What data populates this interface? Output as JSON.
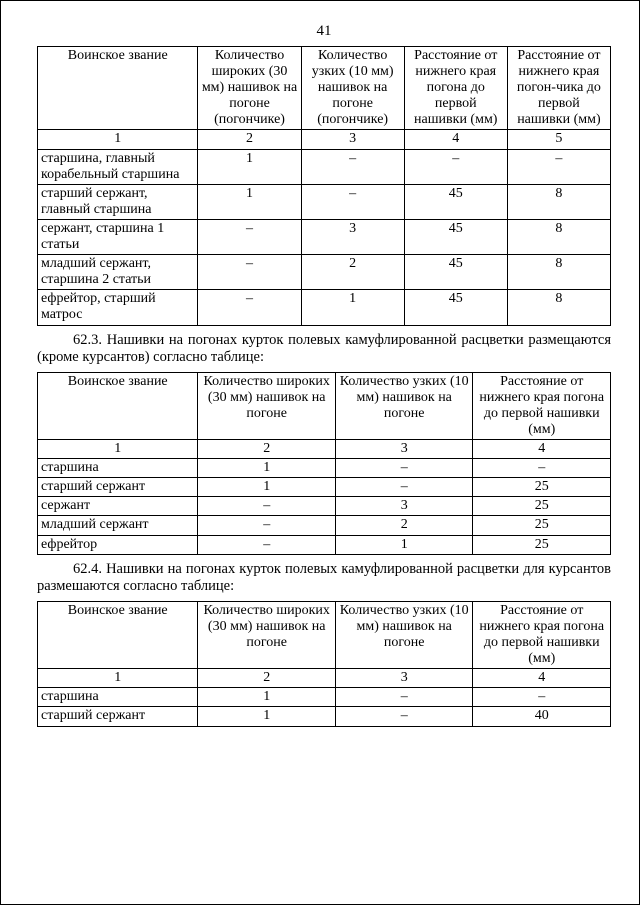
{
  "page_number": "41",
  "table1": {
    "col_widths": [
      "28%",
      "18%",
      "18%",
      "18%",
      "18%"
    ],
    "header": [
      "Воинское звание",
      "Количество широких (30 мм) нашивок на погоне (погончике)",
      "Количество узких (10 мм) нашивок на погоне (погончике)",
      "Расстояние от нижнего края погона до первой нашивки (мм)",
      "Расстояние от нижнего края погон-чика до первой нашивки (мм)"
    ],
    "numrow": [
      "1",
      "2",
      "3",
      "4",
      "5"
    ],
    "rows": [
      [
        "старшина, главный корабельный старшина",
        "1",
        "–",
        "–",
        "–"
      ],
      [
        "старший сержант, главный старшина",
        "1",
        "–",
        "45",
        "8"
      ],
      [
        "сержант, старшина 1 статьи",
        "–",
        "3",
        "45",
        "8"
      ],
      [
        "младший сержант, старшина 2 статьи",
        "–",
        "2",
        "45",
        "8"
      ],
      [
        "ефрейтор, старший матрос",
        "–",
        "1",
        "45",
        "8"
      ]
    ]
  },
  "para1": "62.3. Нашивки на погонах курток полевых камуфлированной расцветки размещаются (кроме курсантов) согласно таблице:",
  "table2": {
    "col_widths": [
      "28%",
      "24%",
      "24%",
      "24%"
    ],
    "header": [
      "Воинское звание",
      "Количество широких (30 мм) нашивок на погоне",
      "Количество узких (10 мм) нашивок на погоне",
      "Расстояние от нижнего края погона до первой нашивки (мм)"
    ],
    "numrow": [
      "1",
      "2",
      "3",
      "4"
    ],
    "rows": [
      [
        "старшина",
        "1",
        "–",
        "–"
      ],
      [
        "старший сержант",
        "1",
        "–",
        "25"
      ],
      [
        "сержант",
        "–",
        "3",
        "25"
      ],
      [
        "младший сержант",
        "–",
        "2",
        "25"
      ],
      [
        "ефрейтор",
        "–",
        "1",
        "25"
      ]
    ]
  },
  "para2": "62.4. Нашивки на погонах курток полевых камуфлированной расцветки для курсантов размешаются согласно таблице:",
  "table3": {
    "col_widths": [
      "28%",
      "24%",
      "24%",
      "24%"
    ],
    "header": [
      "Воинское звание",
      "Количество широких (30 мм) нашивок на погоне",
      "Количество узких (10 мм) нашивок на погоне",
      "Расстояние от нижнего края погона до первой нашивки (мм)"
    ],
    "numrow": [
      "1",
      "2",
      "3",
      "4"
    ],
    "rows": [
      [
        "старшина",
        "1",
        "–",
        "–"
      ],
      [
        "старший сержант",
        "1",
        "–",
        "40"
      ]
    ]
  }
}
